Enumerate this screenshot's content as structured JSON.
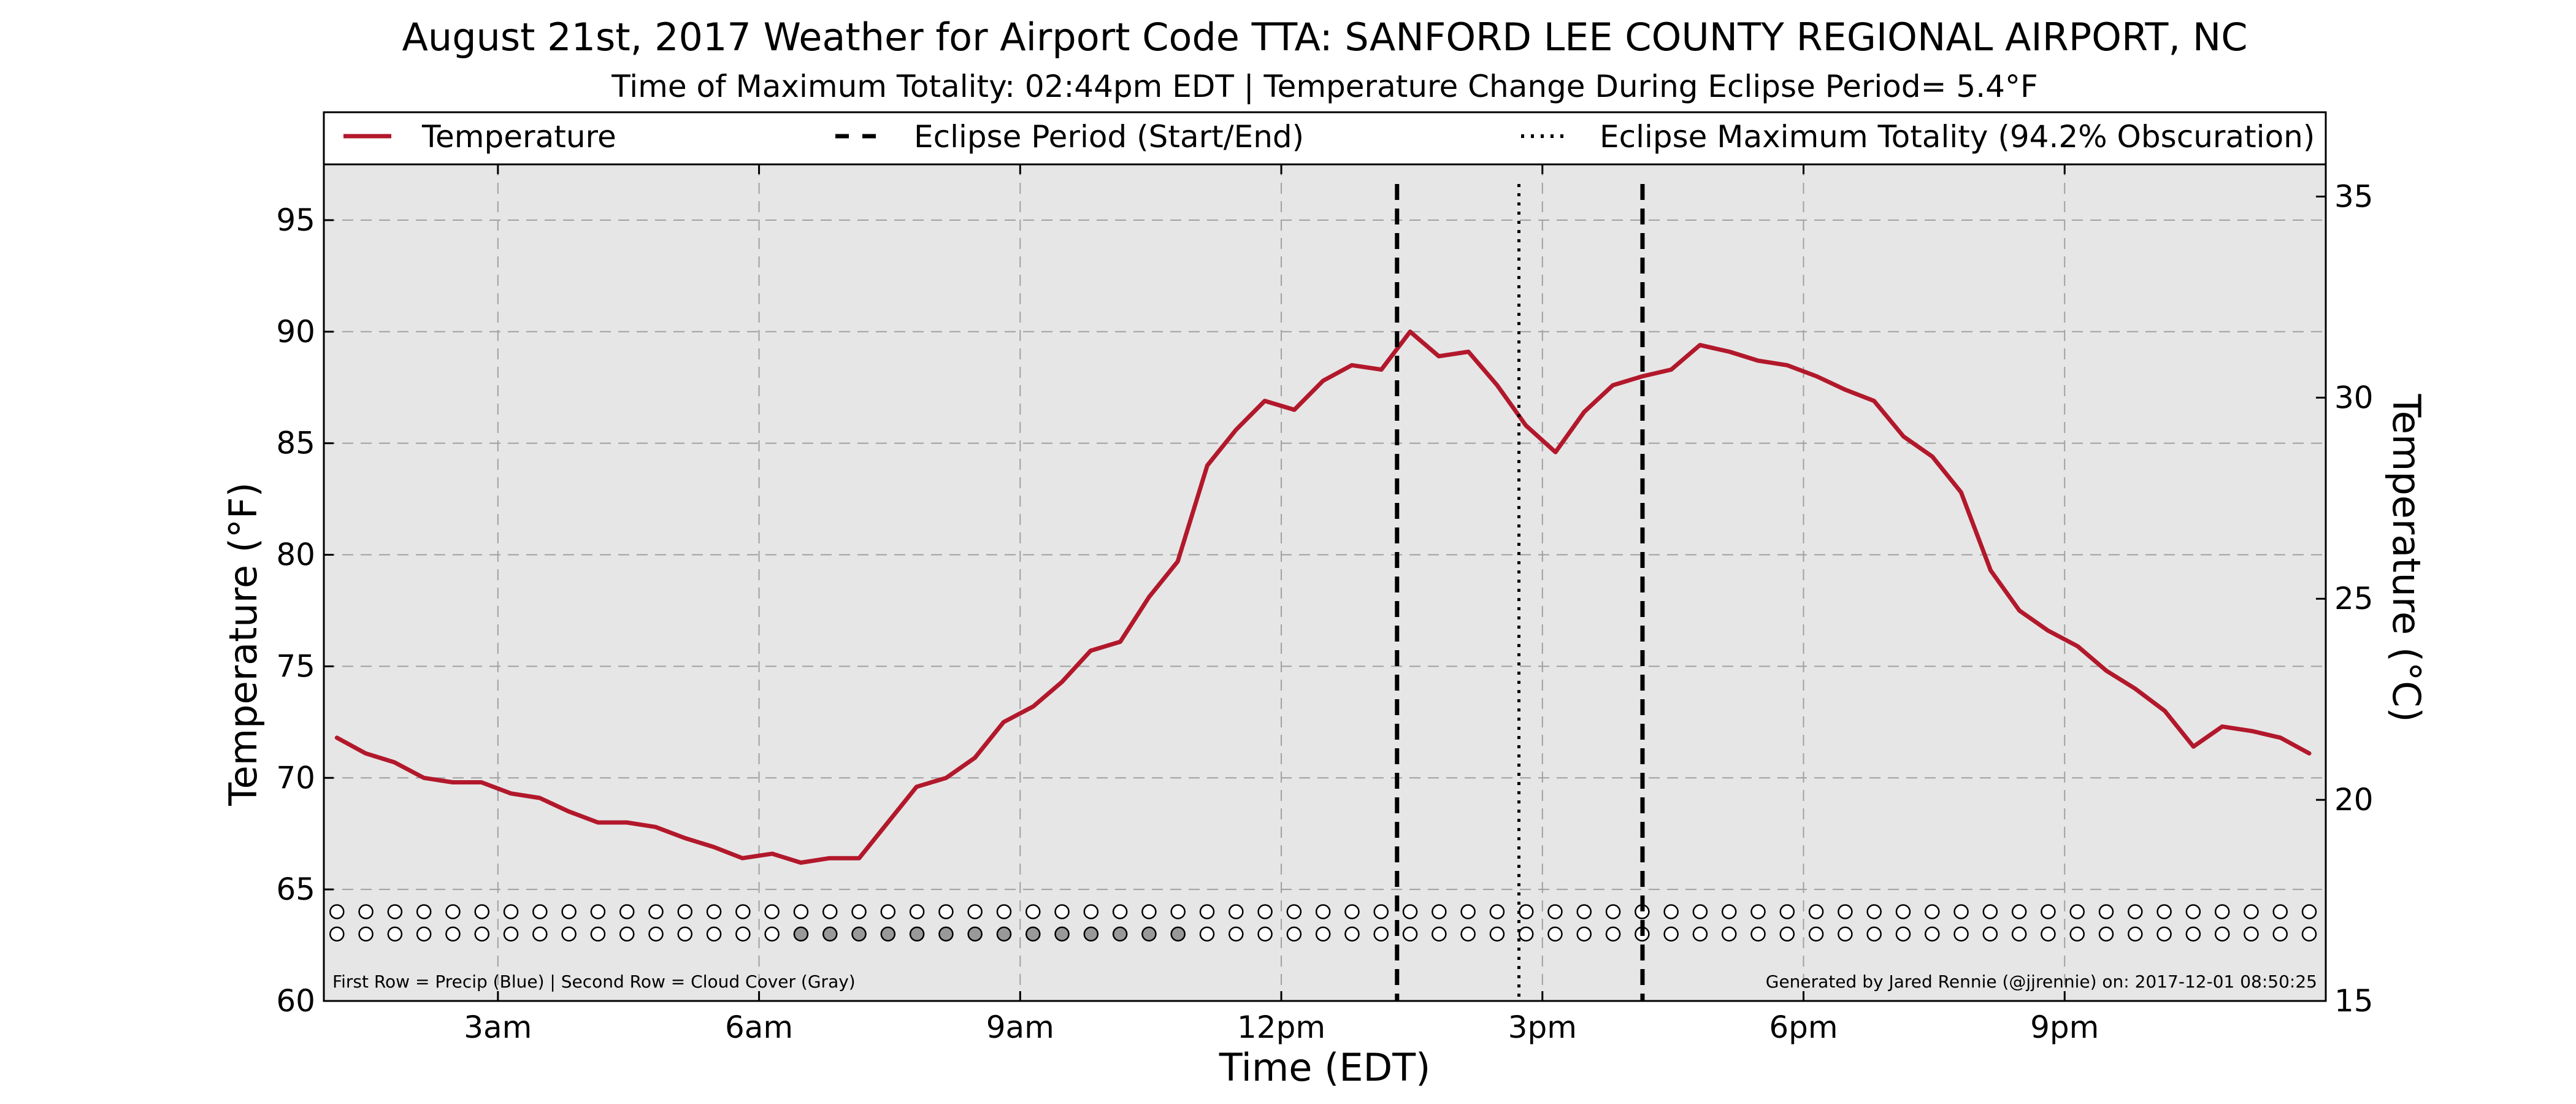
{
  "chart_data": {
    "type": "line",
    "title": "August 21st, 2017 Weather for Airport Code TTA: SANFORD LEE COUNTY REGIONAL AIRPORT, NC",
    "subtitle": "Time of Maximum Totality: 02:44pm EDT | Temperature Change During Eclipse Period= 5.4°F",
    "xlabel": "Time (EDT)",
    "ylabel": "Temperature (°F)",
    "ylabel_right": "Temperature (°C)",
    "xlim": [
      1.0,
      24.0
    ],
    "ylim": [
      60,
      97.5
    ],
    "ylim_right": [
      15,
      35.8
    ],
    "x_ticks": [
      {
        "x": 3,
        "label": "3am"
      },
      {
        "x": 6,
        "label": "6am"
      },
      {
        "x": 9,
        "label": "9am"
      },
      {
        "x": 12,
        "label": "12pm"
      },
      {
        "x": 15,
        "label": "3pm"
      },
      {
        "x": 18,
        "label": "6pm"
      },
      {
        "x": 21,
        "label": "9pm"
      }
    ],
    "y_ticks": [
      60,
      65,
      70,
      75,
      80,
      85,
      90,
      95
    ],
    "y_ticks_right": [
      15,
      20,
      25,
      30,
      35
    ],
    "grid": true,
    "legend_position": "top",
    "legend": [
      {
        "label": "Temperature",
        "style": "solid",
        "color": "#b2182b"
      },
      {
        "label": "Eclipse Period (Start/End)",
        "style": "dashed",
        "color": "#000000"
      },
      {
        "label": "Eclipse Maximum Totality (94.2% Obscuration)",
        "style": "dotted",
        "color": "#000000"
      }
    ],
    "series": [
      {
        "name": "Temperature",
        "color": "#b2182b",
        "x": [
          1.15,
          1.48,
          1.81,
          2.15,
          2.48,
          2.81,
          3.15,
          3.48,
          3.81,
          4.15,
          4.48,
          4.81,
          5.15,
          5.48,
          5.81,
          6.15,
          6.48,
          6.81,
          7.15,
          7.48,
          7.81,
          8.15,
          8.48,
          8.81,
          9.15,
          9.48,
          9.81,
          10.15,
          10.48,
          10.81,
          11.15,
          11.48,
          11.81,
          12.15,
          12.48,
          12.81,
          13.15,
          13.48,
          13.81,
          14.15,
          14.48,
          14.81,
          15.15,
          15.48,
          15.81,
          16.15,
          16.48,
          16.81,
          17.15,
          17.48,
          17.81,
          18.15,
          18.48,
          18.81,
          19.15,
          19.48,
          19.81,
          20.15,
          20.48,
          20.81,
          21.15,
          21.48,
          21.81,
          22.15,
          22.48,
          22.81,
          23.15,
          23.48,
          23.81
        ],
        "values": [
          71.8,
          71.1,
          70.7,
          70.0,
          69.8,
          69.8,
          69.3,
          69.1,
          68.5,
          68.0,
          68.0,
          67.8,
          67.3,
          66.9,
          66.4,
          66.6,
          66.2,
          66.4,
          66.4,
          68.0,
          69.6,
          70.0,
          70.9,
          72.5,
          73.2,
          74.3,
          75.7,
          76.1,
          78.1,
          79.7,
          84.0,
          85.6,
          86.9,
          86.5,
          87.8,
          88.5,
          88.3,
          90.0,
          88.9,
          89.1,
          87.6,
          85.8,
          84.6,
          86.4,
          87.6,
          88.0,
          88.3,
          89.4,
          89.1,
          88.7,
          88.5,
          88.0,
          87.4,
          86.9,
          85.3,
          84.4,
          82.8,
          79.3,
          77.5,
          76.6,
          75.9,
          74.8,
          74.0,
          73.0,
          71.4,
          72.3,
          72.1,
          71.8,
          71.1
        ]
      }
    ],
    "vertical_lines": [
      {
        "x": 13.33,
        "style": "dashed",
        "meaning": "Eclipse Period (Start/End)"
      },
      {
        "x": 14.73,
        "style": "dotted",
        "meaning": "Eclipse Maximum Totality (94.2% Obscuration)"
      },
      {
        "x": 16.15,
        "style": "dashed",
        "meaning": "Eclipse Period (Start/End)"
      }
    ],
    "marker_rows": {
      "precip_row_y": 64,
      "cloud_row_y": 63,
      "precip_count": 69,
      "cloud_count": 69,
      "cloud_gray_index_range": [
        16,
        29
      ],
      "colors": {
        "empty": "#ffffff",
        "cloud_gray": "#999999",
        "precip_blue": "#1f77b4"
      }
    },
    "note_left": "First Row = Precip (Blue) | Second Row = Cloud Cover (Gray)",
    "note_right": "Generated by Jared Rennie (@jjrennie) on: 2017-12-01 08:50:25"
  }
}
